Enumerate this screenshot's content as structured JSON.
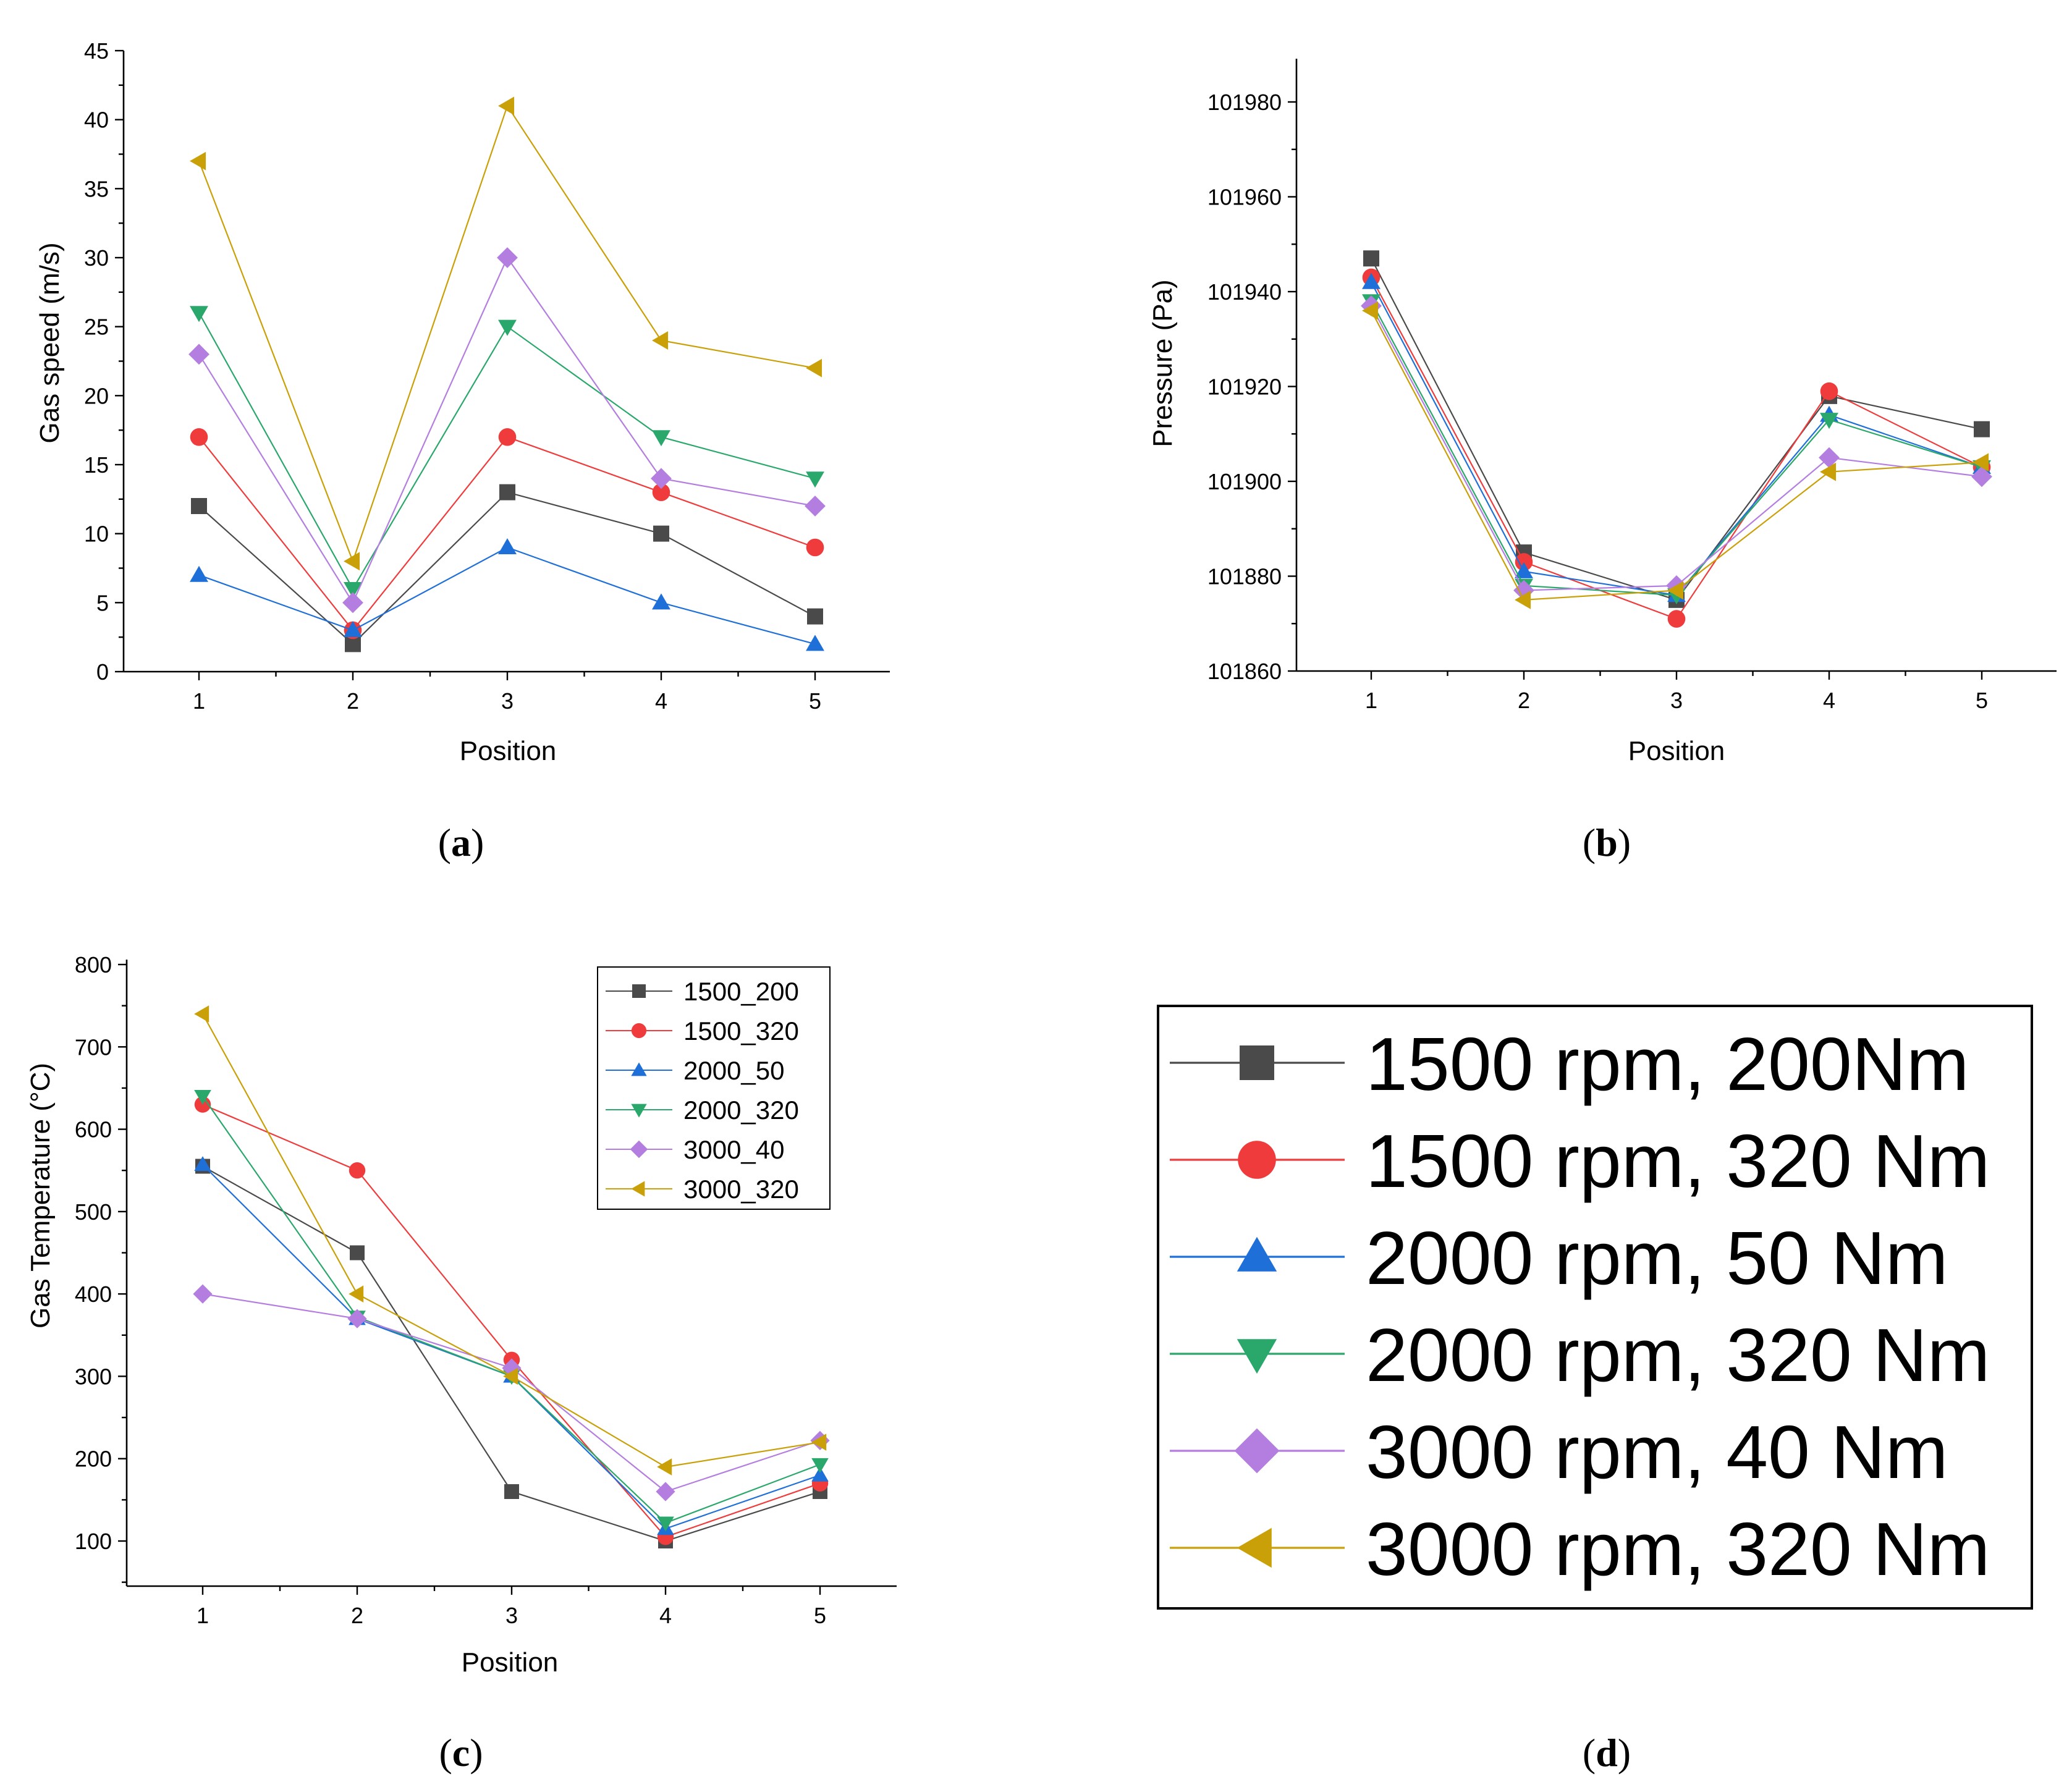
{
  "colors": {
    "1500_200": "#4a4a4a",
    "1500_320": "#ef3b3b",
    "2000_50": "#1f6fd8",
    "2000_320": "#2aa86b",
    "3000_40": "#b47ee0",
    "3000_320": "#c9a007"
  },
  "series_meta": [
    {
      "key": "1500_200",
      "short": "1500_200",
      "long": "1500 rpm, 200Nm",
      "marker": "square"
    },
    {
      "key": "1500_320",
      "short": "1500_320",
      "long": "1500 rpm, 320 Nm",
      "marker": "circle"
    },
    {
      "key": "2000_50",
      "short": "2000_50",
      "long": "2000 rpm, 50 Nm",
      "marker": "triangle-up"
    },
    {
      "key": "2000_320",
      "short": "2000_320",
      "long": "2000 rpm, 320 Nm",
      "marker": "triangle-down"
    },
    {
      "key": "3000_40",
      "short": "3000_40",
      "long": "3000 rpm, 40 Nm",
      "marker": "diamond"
    },
    {
      "key": "3000_320",
      "short": "3000_320",
      "long": "3000 rpm, 320 Nm",
      "marker": "triangle-left"
    }
  ],
  "captions": {
    "a": "a",
    "b": "b",
    "c": "c",
    "d": "d"
  },
  "chart_data": [
    {
      "id": "a",
      "type": "line",
      "title": "",
      "xlabel": "Position",
      "ylabel": "Gas speed (m/s)",
      "x": [
        1,
        2,
        3,
        4,
        5
      ],
      "xticks": [
        "1",
        "2",
        "3",
        "4",
        "5"
      ],
      "ylim": [
        0,
        45
      ],
      "yticks": [
        "0",
        "5",
        "10",
        "15",
        "20",
        "25",
        "30",
        "35",
        "40",
        "45"
      ],
      "series": [
        {
          "name": "1500_200",
          "values": [
            12,
            2,
            13,
            10,
            4
          ]
        },
        {
          "name": "1500_320",
          "values": [
            17,
            3,
            17,
            13,
            9
          ]
        },
        {
          "name": "2000_50",
          "values": [
            7,
            3,
            9,
            5,
            2
          ]
        },
        {
          "name": "2000_320",
          "values": [
            26,
            6,
            25,
            17,
            14
          ]
        },
        {
          "name": "3000_40",
          "values": [
            23,
            5,
            30,
            14,
            12
          ]
        },
        {
          "name": "3000_320",
          "values": [
            37,
            8,
            41,
            24,
            22
          ]
        }
      ]
    },
    {
      "id": "b",
      "type": "line",
      "title": "",
      "xlabel": "Position",
      "ylabel": "Pressure (Pa)",
      "x": [
        1,
        2,
        3,
        4,
        5
      ],
      "xticks": [
        "1",
        "2",
        "3",
        "4",
        "5"
      ],
      "ylim": [
        101860,
        101990
      ],
      "yticks": [
        "101860",
        "101880",
        "101900",
        "101920",
        "101940",
        "101960",
        "101980"
      ],
      "series": [
        {
          "name": "1500_200",
          "values": [
            101947,
            101885,
            101875,
            101918,
            101911
          ]
        },
        {
          "name": "1500_320",
          "values": [
            101943,
            101883,
            101871,
            101919,
            101903
          ]
        },
        {
          "name": "2000_50",
          "values": [
            101942,
            101881,
            101876,
            101914,
            101903
          ]
        },
        {
          "name": "2000_320",
          "values": [
            101938,
            101878,
            101876,
            101913,
            101903
          ]
        },
        {
          "name": "3000_40",
          "values": [
            101937,
            101877,
            101878,
            101905,
            101901
          ]
        },
        {
          "name": "3000_320",
          "values": [
            101936,
            101875,
            101877,
            101902,
            101904
          ]
        }
      ]
    },
    {
      "id": "c",
      "type": "line",
      "title": "",
      "xlabel": "Position",
      "ylabel": "Gas Temperature (°C)",
      "x": [
        1,
        2,
        3,
        4,
        5
      ],
      "xticks": [
        "1",
        "2",
        "3",
        "4",
        "5"
      ],
      "ylim": [
        50,
        800
      ],
      "yticks": [
        "100",
        "200",
        "300",
        "400",
        "500",
        "600",
        "700",
        "800"
      ],
      "legend": {
        "position": "top-right",
        "entries": [
          "1500_200",
          "1500_320",
          "2000_50",
          "2000_320",
          "3000_40",
          "3000_320"
        ]
      },
      "series": [
        {
          "name": "1500_200",
          "values": [
            555,
            450,
            160,
            100,
            160
          ]
        },
        {
          "name": "1500_320",
          "values": [
            630,
            550,
            320,
            105,
            170
          ]
        },
        {
          "name": "2000_50",
          "values": [
            557,
            370,
            300,
            115,
            180
          ]
        },
        {
          "name": "2000_320",
          "values": [
            640,
            372,
            300,
            122,
            193
          ]
        },
        {
          "name": "3000_40",
          "values": [
            400,
            370,
            310,
            160,
            222
          ]
        },
        {
          "name": "3000_320",
          "values": [
            740,
            400,
            300,
            190,
            220
          ]
        }
      ]
    },
    {
      "id": "d",
      "type": "legend",
      "entries": [
        "1500 rpm, 200Nm",
        "1500 rpm, 320 Nm",
        "2000 rpm, 50 Nm",
        "2000 rpm, 320 Nm",
        "3000 rpm, 40 Nm",
        "3000 rpm, 320 Nm"
      ]
    }
  ]
}
